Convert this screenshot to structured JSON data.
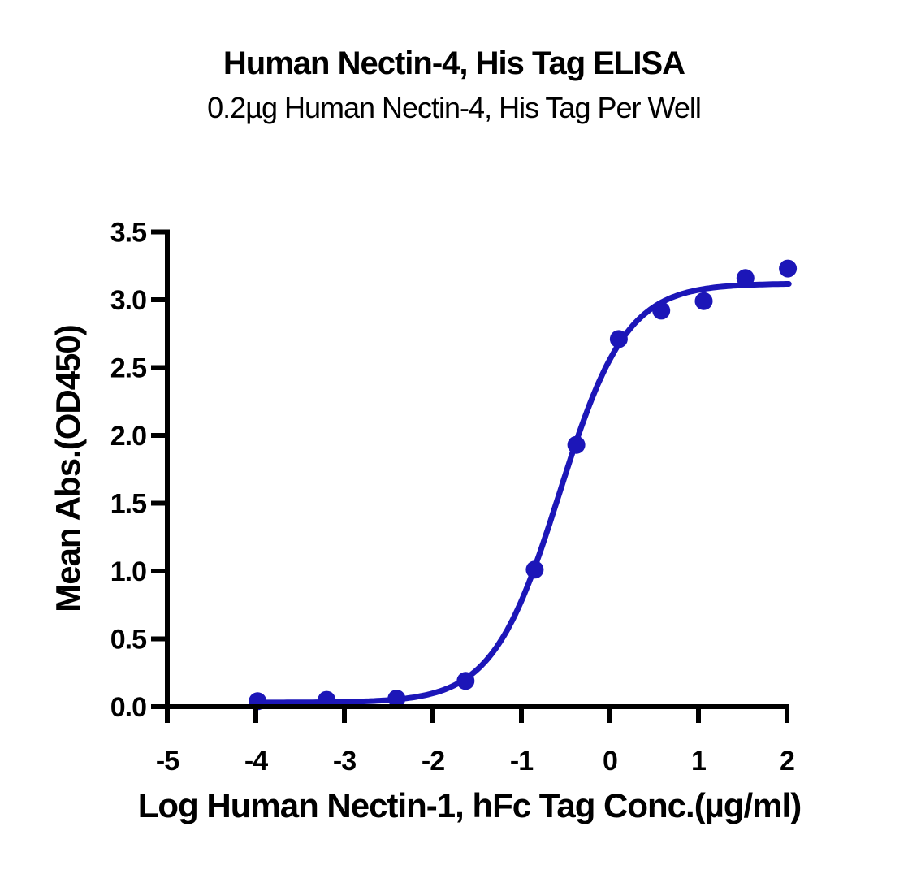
{
  "page": {
    "background_color": "#ffffff",
    "text_color": "#000000"
  },
  "chart_data": {
    "type": "scatter",
    "title": "Human Nectin-4, His Tag ELISA",
    "subtitle": "0.2µg Human Nectin-4, His Tag Per Well",
    "xlabel": "Log Human Nectin-1, hFc Tag Conc.(µg/ml)",
    "ylabel": "Mean Abs.(OD450)",
    "legend": "none",
    "grid": false,
    "xlim": [
      -5,
      2
    ],
    "ylim": [
      0,
      3.5
    ],
    "x_ticks": [
      -5,
      -4,
      -3,
      -2,
      -1,
      0,
      1,
      2
    ],
    "x_tick_labels": [
      "-5",
      "-4",
      "-3",
      "-2",
      "-1",
      "0",
      "1",
      "2"
    ],
    "y_ticks": [
      0,
      0.5,
      1,
      1.5,
      2,
      2.5,
      3,
      3.5
    ],
    "y_tick_labels": [
      "0.0",
      "0.5",
      "1.0",
      "1.5",
      "2.0",
      "2.5",
      "3.0",
      "3.5"
    ],
    "points": [
      {
        "x": -3.98,
        "y": 0.04
      },
      {
        "x": -3.2,
        "y": 0.05
      },
      {
        "x": -2.41,
        "y": 0.06
      },
      {
        "x": -1.63,
        "y": 0.19
      },
      {
        "x": -0.85,
        "y": 1.01
      },
      {
        "x": -0.38,
        "y": 1.93
      },
      {
        "x": 0.1,
        "y": 2.71
      },
      {
        "x": 0.58,
        "y": 2.92
      },
      {
        "x": 1.06,
        "y": 2.99
      },
      {
        "x": 1.53,
        "y": 3.16
      },
      {
        "x": 2.01,
        "y": 3.23
      }
    ],
    "fit_curve": {
      "model": "4PL-sigmoid",
      "bottom": 0.03,
      "top": 3.12,
      "log_ec50": -0.57,
      "hill": 1.15,
      "x_start": -3.98,
      "x_end": 2.04
    },
    "series_color": "#1c16b8",
    "axis_color": "#000000"
  }
}
